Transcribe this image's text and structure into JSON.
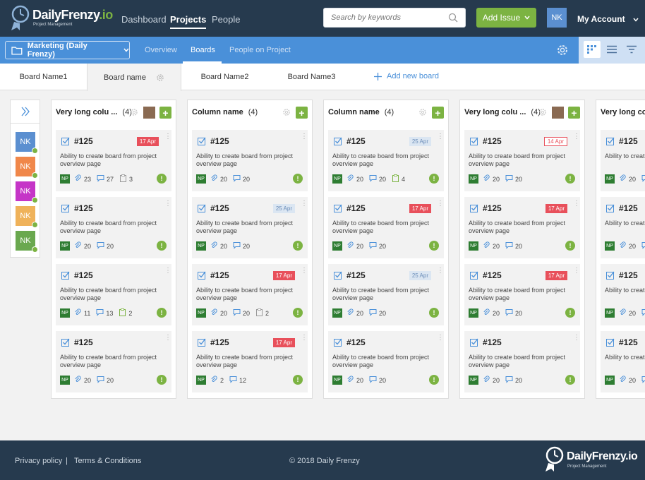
{
  "header": {
    "logo_text": "DailyFrenzy",
    "logo_io": ".io",
    "logo_sub": "Project Management",
    "nav": [
      "Dashboard",
      "Projects",
      "People"
    ],
    "active_nav": "Projects",
    "search_placeholder": "Search by keywords",
    "add_issue_label": "Add Issue",
    "user_initials": "NK",
    "account_label": "My Account"
  },
  "subbar": {
    "project": "Marketing (Daily Frenzy)",
    "tabs": [
      "Overview",
      "Boards",
      "People on Project"
    ],
    "active_tab": "Boards"
  },
  "boards": {
    "tabs": [
      "Board Name1",
      "Board name",
      "Board Name2",
      "Board Name3"
    ],
    "active": "Board name",
    "add_label": "Add new board"
  },
  "sidebar": {
    "members": [
      {
        "initials": "NK",
        "color": "#5b8fd0"
      },
      {
        "initials": "NK",
        "color": "#f0874a"
      },
      {
        "initials": "NK",
        "color": "#c535c7"
      },
      {
        "initials": "NK",
        "color": "#efb25a"
      },
      {
        "initials": "NK",
        "color": "#6aa84f"
      }
    ]
  },
  "columns": [
    {
      "title": "Very long colu ...",
      "count": "(4)",
      "has_photo": true,
      "cards": [
        {
          "id": "#125",
          "date": "17 Apr",
          "date_style": "red",
          "desc": "Ability to create board from project overview page",
          "assignee": "NP",
          "attach": "23",
          "comments": "27",
          "tasks": "3",
          "tasks_done": false
        },
        {
          "id": "#125",
          "date": "",
          "date_style": "",
          "desc": "Ability to create board from project overview page",
          "assignee": "NP",
          "attach": "20",
          "comments": "20",
          "tasks": "",
          "tasks_done": false
        },
        {
          "id": "#125",
          "date": "",
          "date_style": "",
          "desc": "Ability to create board from project overview page",
          "assignee": "NP",
          "attach": "11",
          "comments": "13",
          "tasks": "2",
          "tasks_done": true
        },
        {
          "id": "#125",
          "date": "",
          "date_style": "",
          "desc": "Ability to create board from project overview page",
          "assignee": "NP",
          "attach": "20",
          "comments": "20",
          "tasks": "",
          "tasks_done": false
        }
      ]
    },
    {
      "title": "Column name",
      "count": "(4)",
      "has_photo": false,
      "cards": [
        {
          "id": "#125",
          "date": "",
          "date_style": "",
          "desc": "Ability to create board from project overview page",
          "assignee": "NP",
          "attach": "20",
          "comments": "20",
          "tasks": "",
          "tasks_done": false
        },
        {
          "id": "#125",
          "date": "25 Apr",
          "date_style": "blue",
          "desc": "Ability to create board from project overview page",
          "assignee": "NP",
          "attach": "20",
          "comments": "20",
          "tasks": "",
          "tasks_done": false
        },
        {
          "id": "#125",
          "date": "17 Apr",
          "date_style": "red",
          "desc": "Ability to create board from project overview page",
          "assignee": "NP",
          "attach": "20",
          "comments": "20",
          "tasks": "2",
          "tasks_done": false
        },
        {
          "id": "#125",
          "date": "17 Apr",
          "date_style": "red",
          "desc": "Ability to create board from project overview page",
          "assignee": "NP",
          "attach": "2",
          "comments": "12",
          "tasks": "",
          "tasks_done": false
        }
      ]
    },
    {
      "title": "Column name",
      "count": "(4)",
      "has_photo": false,
      "cards": [
        {
          "id": "#125",
          "date": "25 Apr",
          "date_style": "blue",
          "desc": "Ability to create board from project overview page",
          "assignee": "NP",
          "attach": "20",
          "comments": "20",
          "tasks": "4",
          "tasks_done": true
        },
        {
          "id": "#125",
          "date": "17 Apr",
          "date_style": "red",
          "desc": "Ability to create board from project overview page",
          "assignee": "NP",
          "attach": "20",
          "comments": "20",
          "tasks": "",
          "tasks_done": false
        },
        {
          "id": "#125",
          "date": "25 Apr",
          "date_style": "blue",
          "desc": "Ability to create board from project overview page",
          "assignee": "NP",
          "attach": "20",
          "comments": "20",
          "tasks": "",
          "tasks_done": false
        },
        {
          "id": "#125",
          "date": "",
          "date_style": "",
          "desc": "Ability to create board from project overview page",
          "assignee": "NP",
          "attach": "20",
          "comments": "20",
          "tasks": "",
          "tasks_done": false
        }
      ]
    },
    {
      "title": "Very long colu ...",
      "count": "(4)",
      "has_photo": true,
      "cards": [
        {
          "id": "#125",
          "date": "14 Apr",
          "date_style": "redo",
          "desc": "Ability to create board from project overview page",
          "assignee": "NP",
          "attach": "20",
          "comments": "20",
          "tasks": "",
          "tasks_done": false
        },
        {
          "id": "#125",
          "date": "17 Apr",
          "date_style": "red",
          "desc": "Ability to create board from project overview page",
          "assignee": "NP",
          "attach": "20",
          "comments": "20",
          "tasks": "",
          "tasks_done": false
        },
        {
          "id": "#125",
          "date": "17 Apr",
          "date_style": "red",
          "desc": "Ability to create board from project overview page",
          "assignee": "NP",
          "attach": "20",
          "comments": "20",
          "tasks": "",
          "tasks_done": false
        },
        {
          "id": "#125",
          "date": "",
          "date_style": "",
          "desc": "Ability to create board from project overview page",
          "assignee": "NP",
          "attach": "20",
          "comments": "20",
          "tasks": "",
          "tasks_done": false
        }
      ]
    },
    {
      "title": "Very long colu",
      "count": "",
      "has_photo": false,
      "cards": [
        {
          "id": "#125",
          "date": "",
          "date_style": "",
          "desc": "Ability to creat overview page",
          "assignee": "NP",
          "attach": "20",
          "comments": "",
          "tasks": "",
          "tasks_done": false
        },
        {
          "id": "#125",
          "date": "",
          "date_style": "",
          "desc": "Ability to creat overview page",
          "assignee": "NP",
          "attach": "20",
          "comments": "",
          "tasks": "",
          "tasks_done": false
        },
        {
          "id": "#125",
          "date": "",
          "date_style": "",
          "desc": "Ability to creat overview page",
          "assignee": "NP",
          "attach": "20",
          "comments": "",
          "tasks": "",
          "tasks_done": false
        },
        {
          "id": "#125",
          "date": "",
          "date_style": "",
          "desc": "Ability to creat overview page",
          "assignee": "NP",
          "attach": "20",
          "comments": "",
          "tasks": "",
          "tasks_done": false
        }
      ]
    }
  ],
  "footer": {
    "privacy": "Privacy policy",
    "separator": "|",
    "terms": "Terms & Conditions",
    "copyright": "© 2018 Daily Frenzy",
    "logo_text": "DailyFrenzy",
    "logo_io": ".io",
    "logo_sub": "Project Management"
  },
  "colors": {
    "navy": "#263a4e",
    "blue": "#4a90d9",
    "green": "#7cb342",
    "red": "#e8505b"
  }
}
